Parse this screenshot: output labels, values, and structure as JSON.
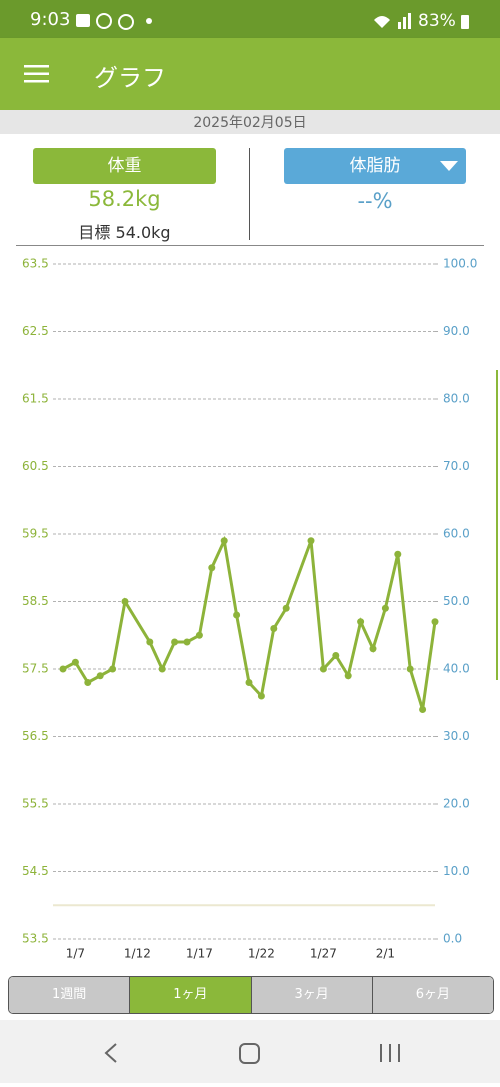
{
  "status_bar": {
    "time": "9:03",
    "battery": "83%"
  },
  "app_bar": {
    "title": "グラフ"
  },
  "date": "2025年02月05日",
  "weight_card": {
    "button": "体重",
    "value": "58.2kg",
    "goal": "目標 54.0kg"
  },
  "fat_card": {
    "button": "体脂肪",
    "value": "--%"
  },
  "chart_data": {
    "type": "line",
    "categories": [
      null,
      "1/7",
      null,
      null,
      null,
      null,
      "1/12",
      null,
      null,
      null,
      null,
      "1/17",
      null,
      null,
      null,
      null,
      "1/22",
      null,
      null,
      null,
      null,
      "1/27",
      null,
      null,
      null,
      null,
      "2/1",
      null,
      null,
      null,
      null
    ],
    "series": [
      {
        "color": "#8db33a",
        "values": [
          57.5,
          57.6,
          57.3,
          57.4,
          57.5,
          58.5,
          null,
          57.9,
          57.5,
          57.9,
          57.9,
          58.0,
          59.0,
          59.4,
          58.3,
          57.3,
          57.1,
          58.1,
          58.4,
          null,
          59.4,
          57.5,
          57.7,
          57.4,
          58.2,
          57.8,
          58.4,
          59.2,
          57.5,
          56.9,
          58.2
        ]
      }
    ],
    "span_gaps": true,
    "ylim": [
      53.5,
      63.5
    ],
    "yticks": [
      53.5,
      54.5,
      55.5,
      56.5,
      57.5,
      58.5,
      59.5,
      60.5,
      61.5,
      62.5,
      63.5
    ],
    "y2lim": [
      0,
      100
    ],
    "y2ticks": [
      {
        "value": 0,
        "label": "0.0"
      },
      {
        "value": 10,
        "label": "10.0"
      },
      {
        "value": 20,
        "label": "20.0"
      },
      {
        "value": 30,
        "label": "30.0"
      },
      {
        "value": 40,
        "label": "40.0"
      },
      {
        "value": 50,
        "label": "50.0"
      },
      {
        "value": 60,
        "label": "60.0"
      },
      {
        "value": 70,
        "label": "70.0"
      },
      {
        "value": 80,
        "label": "80.0"
      },
      {
        "value": 90,
        "label": "90.0"
      },
      {
        "value": 100,
        "label": "100.0"
      }
    ],
    "y2color": "#5aa0c8",
    "grid": true,
    "goal_line": 54.0
  },
  "tabs": {
    "labels": [
      "1週間",
      "1ヶ月",
      "3ヶ月",
      "6ヶ月"
    ],
    "selected": 1
  }
}
